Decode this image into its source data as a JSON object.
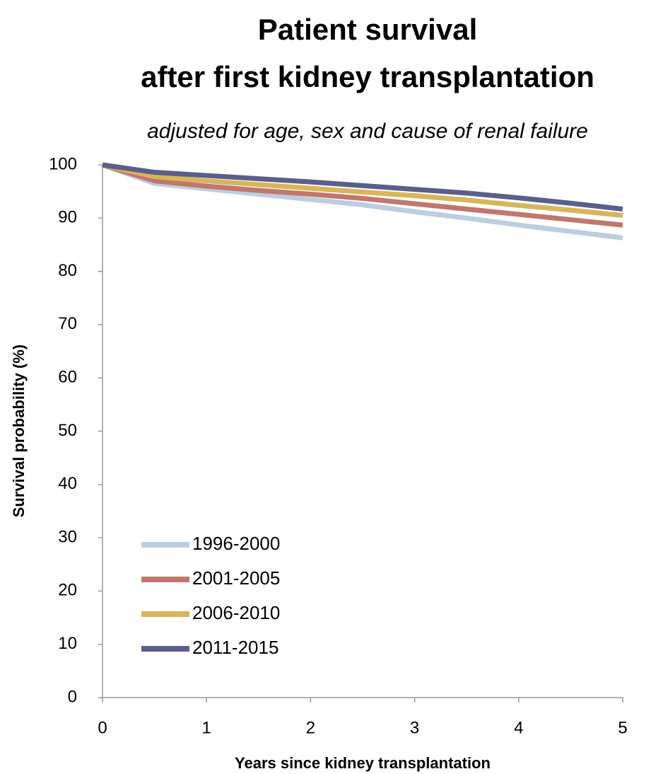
{
  "chart_data": {
    "type": "line",
    "title": [
      "Patient survival",
      "after first kidney transplantation"
    ],
    "subtitle": "adjusted for age, sex and cause of renal failure",
    "x_label": "Years since kidney transplantation",
    "y_label": "Survival probability (%)",
    "x": [
      0,
      0.5,
      1,
      1.5,
      2,
      2.5,
      3,
      3.5,
      4,
      4.5,
      5
    ],
    "series": [
      {
        "name": "1996-2000",
        "color": "#bccde0",
        "values": [
          100,
          96.5,
          95.5,
          94.5,
          93.5,
          92.5,
          91.2,
          90,
          88.7,
          87.5,
          86.3
        ]
      },
      {
        "name": "2001-2005",
        "color": "#c0776e",
        "values": [
          100,
          97,
          96,
          95.2,
          94.5,
          93.7,
          92.7,
          91.7,
          90.7,
          89.7,
          88.7
        ]
      },
      {
        "name": "2006-2010",
        "color": "#d9b55a",
        "values": [
          100,
          97.8,
          97,
          96.3,
          95.6,
          94.9,
          94.2,
          93.4,
          92.4,
          91.5,
          90.5
        ]
      },
      {
        "name": "2011-2015",
        "color": "#5a5e8a",
        "values": [
          100,
          98.6,
          98,
          97.4,
          96.8,
          96.1,
          95.4,
          94.7,
          93.8,
          92.8,
          91.7
        ]
      }
    ],
    "xlim": [
      0,
      5
    ],
    "xticks": [
      0,
      1,
      2,
      3,
      4,
      5
    ],
    "ylim": [
      0,
      100
    ],
    "yticks": [
      0,
      10,
      20,
      30,
      40,
      50,
      60,
      70,
      80,
      90,
      100
    ],
    "grid": false,
    "legend": "lower left"
  }
}
